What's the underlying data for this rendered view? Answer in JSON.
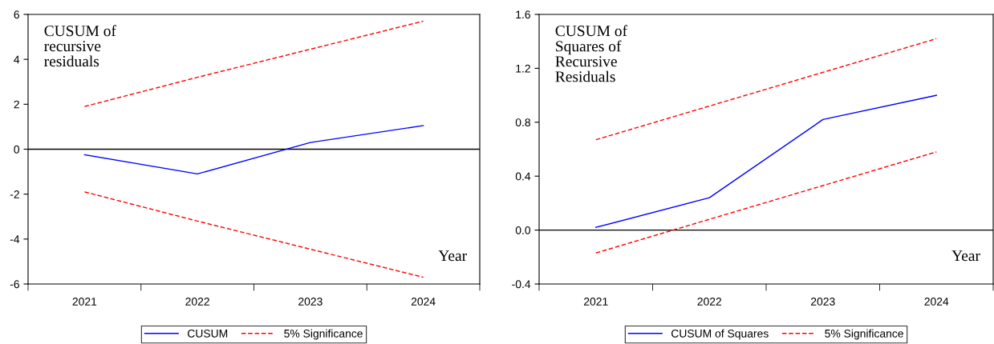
{
  "chart_data": [
    {
      "type": "line",
      "categories": [
        "2021",
        "2022",
        "2023",
        "2024"
      ],
      "xlabel": "Year",
      "annotations": [
        "CUSUM of\nrecursive\nresiduals"
      ],
      "series": [
        {
          "name": "CUSUM",
          "color": "#0000ff",
          "line_style": "solid",
          "values": [
            -0.25,
            -1.1,
            0.3,
            1.05
          ]
        },
        {
          "name": "5% Significance",
          "color": "#ff0000",
          "line_style": "dashed",
          "values": [
            1.9,
            3.2,
            4.45,
            5.7
          ]
        },
        {
          "color": "#ff0000",
          "line_style": "dashed",
          "values": [
            -1.9,
            -3.2,
            -4.45,
            -5.7
          ]
        }
      ],
      "ylim": [
        -6,
        6
      ],
      "yticks": [
        -6,
        -4,
        -2,
        0,
        2,
        4,
        6
      ],
      "ref_lines": [
        {
          "axis": "y",
          "value": 0,
          "color": "#000000"
        }
      ],
      "grid": false,
      "legend": "bottom",
      "marker": "none"
    },
    {
      "type": "line",
      "categories": [
        "2021",
        "2022",
        "2023",
        "2024"
      ],
      "xlabel": "Year",
      "annotations": [
        "CUSUM of\nSquares of\nRecursive\nResiduals"
      ],
      "series": [
        {
          "name": "CUSUM of Squares",
          "color": "#0000ff",
          "line_style": "solid",
          "values": [
            0.02,
            0.24,
            0.82,
            1.0
          ]
        },
        {
          "name": "5% Significance",
          "color": "#ff0000",
          "line_style": "dashed",
          "values": [
            0.67,
            0.92,
            1.17,
            1.42
          ]
        },
        {
          "color": "#ff0000",
          "line_style": "dashed",
          "values": [
            -0.17,
            0.08,
            0.33,
            0.58
          ]
        }
      ],
      "ylim": [
        -0.4,
        1.6
      ],
      "yticks": [
        {
          "value": -0.4,
          "label": "-0.4"
        },
        {
          "value": 0,
          "label": "0.0"
        },
        {
          "value": 0.4,
          "label": "0.4"
        },
        {
          "value": 0.8,
          "label": "0.8"
        },
        {
          "value": 1.2,
          "label": "1.2"
        },
        {
          "value": 1.6,
          "label": "1.6"
        }
      ],
      "ref_lines": [
        {
          "axis": "y",
          "value": 0,
          "color": "#000000"
        }
      ],
      "grid": false,
      "legend": "bottom",
      "marker": "none"
    }
  ]
}
